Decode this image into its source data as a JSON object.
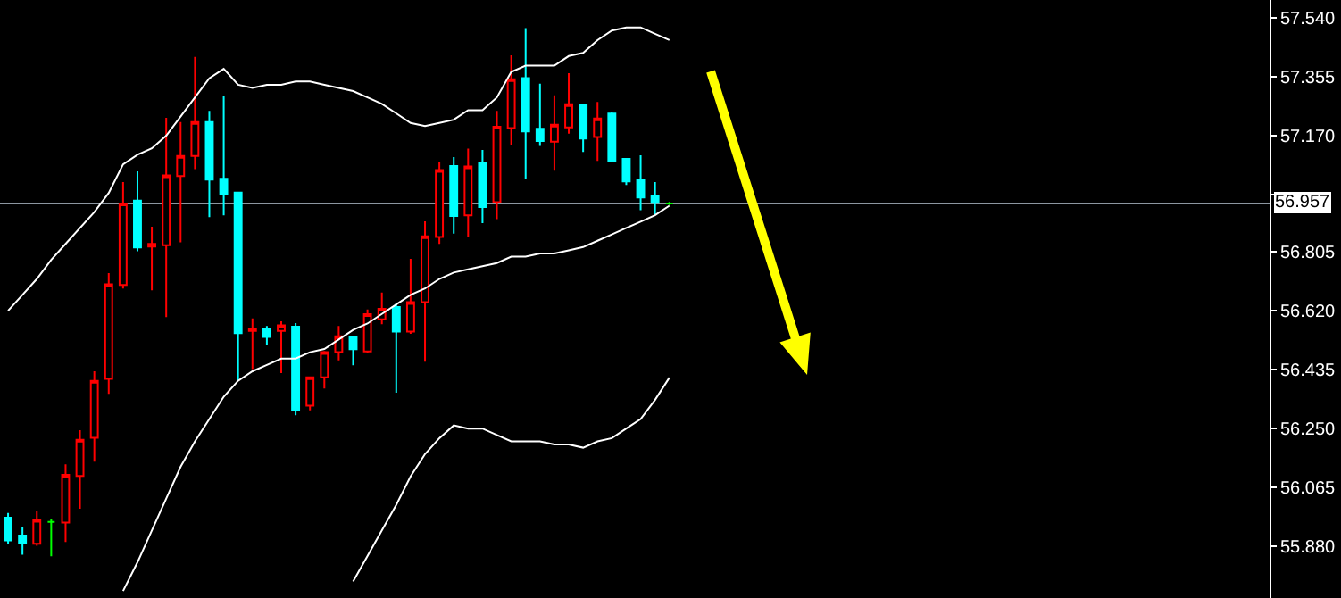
{
  "chart_data": {
    "type": "candlestick",
    "categories": [
      null,
      null,
      null,
      null,
      null,
      null,
      null,
      null,
      null,
      null,
      null,
      null,
      null,
      null,
      null,
      null,
      null,
      null,
      null,
      null,
      null,
      null,
      null,
      null,
      null,
      null,
      null,
      null,
      null,
      null,
      null,
      null,
      null,
      null,
      null,
      null,
      null,
      null,
      null,
      null,
      null,
      null,
      null,
      null,
      null,
      null,
      null
    ],
    "ohlc": [
      [
        55.97,
        55.985,
        55.886,
        55.899
      ],
      [
        55.914,
        55.942,
        55.854,
        55.892
      ],
      [
        55.888,
        55.993,
        55.882,
        55.963
      ],
      [
        55.957,
        55.965,
        55.849,
        55.957
      ],
      [
        55.955,
        56.138,
        55.894,
        56.105
      ],
      [
        56.101,
        56.245,
        55.998,
        56.215
      ],
      [
        56.221,
        56.43,
        56.146,
        56.4
      ],
      [
        56.406,
        56.738,
        56.359,
        56.703
      ],
      [
        56.701,
        57.024,
        56.69,
        56.957
      ],
      [
        56.966,
        57.058,
        56.807,
        56.819
      ],
      [
        56.822,
        56.884,
        56.684,
        56.83
      ],
      [
        56.826,
        57.226,
        56.6,
        57.045
      ],
      [
        57.043,
        57.213,
        56.835,
        57.106
      ],
      [
        57.106,
        57.417,
        57.065,
        57.213
      ],
      [
        57.213,
        57.248,
        56.914,
        57.032
      ],
      [
        57.035,
        57.293,
        56.92,
        56.987
      ],
      [
        56.991,
        56.991,
        56.4,
        56.55
      ],
      [
        56.557,
        56.596,
        56.437,
        56.564
      ],
      [
        56.564,
        56.572,
        56.512,
        56.538
      ],
      [
        56.557,
        56.587,
        56.424,
        56.574
      ],
      [
        56.57,
        56.581,
        56.292,
        56.307
      ],
      [
        56.322,
        56.411,
        56.307,
        56.411
      ],
      [
        56.411,
        56.494,
        56.376,
        56.49
      ],
      [
        56.49,
        56.572,
        56.464,
        56.54
      ],
      [
        56.538,
        56.54,
        56.449,
        56.499
      ],
      [
        56.492,
        56.624,
        56.488,
        56.609
      ],
      [
        56.593,
        56.677,
        56.578,
        56.626
      ],
      [
        56.632,
        56.643,
        56.363,
        56.555
      ],
      [
        56.555,
        56.783,
        56.548,
        56.647
      ],
      [
        56.647,
        56.901,
        56.46,
        56.854
      ],
      [
        56.852,
        57.088,
        56.83,
        57.062
      ],
      [
        57.075,
        57.103,
        56.862,
        56.918
      ],
      [
        56.92,
        57.129,
        56.852,
        57.073
      ],
      [
        57.086,
        57.125,
        56.895,
        56.946
      ],
      [
        56.961,
        57.248,
        56.908,
        57.198
      ],
      [
        57.194,
        57.422,
        57.14,
        57.347
      ],
      [
        57.351,
        57.508,
        57.035,
        57.183
      ],
      [
        57.192,
        57.333,
        57.138,
        57.153
      ],
      [
        57.151,
        57.297,
        57.06,
        57.204
      ],
      [
        57.196,
        57.366,
        57.176,
        57.269
      ],
      [
        57.265,
        57.269,
        57.119,
        57.161
      ],
      [
        57.166,
        57.276,
        57.091,
        57.224
      ],
      [
        57.239,
        57.245,
        57.091,
        57.091
      ],
      [
        57.097,
        57.097,
        57.015,
        57.026
      ],
      [
        57.03,
        57.108,
        56.936,
        56.976
      ],
      [
        56.979,
        57.024,
        56.923,
        56.959
      ],
      [
        56.957,
        56.962,
        56.952,
        56.957
      ]
    ],
    "colors": [
      "#00ffff",
      "#00ffff",
      "#ff0000",
      "#00ff00",
      "#ff0000",
      "#ff0000",
      "#ff0000",
      "#ff0000",
      "#ff0000",
      "#00ffff",
      "#ff0000",
      "#ff0000",
      "#ff0000",
      "#ff0000",
      "#00ffff",
      "#00ffff",
      "#00ffff",
      "#ff0000",
      "#00ffff",
      "#ff0000",
      "#00ffff",
      "#ff0000",
      "#ff0000",
      "#ff0000",
      "#00ffff",
      "#ff0000",
      "#ff0000",
      "#00ffff",
      "#ff0000",
      "#ff0000",
      "#ff0000",
      "#00ffff",
      "#ff0000",
      "#00ffff",
      "#ff0000",
      "#ff0000",
      "#00ffff",
      "#00ffff",
      "#ff0000",
      "#ff0000",
      "#00ffff",
      "#ff0000",
      "#00ffff",
      "#00ffff",
      "#00ffff",
      "#00ffff",
      "#00ff00"
    ],
    "series": [
      {
        "type": "line",
        "color": "#ffffff",
        "values": [
          56.62,
          56.67,
          56.72,
          56.78,
          56.83,
          56.88,
          56.93,
          56.99,
          57.08,
          57.11,
          57.13,
          57.17,
          57.23,
          57.29,
          57.35,
          57.38,
          57.33,
          57.32,
          57.33,
          57.33,
          57.34,
          57.34,
          57.33,
          57.32,
          57.31,
          57.29,
          57.27,
          57.24,
          57.21,
          57.2,
          57.21,
          57.22,
          57.25,
          57.25,
          57.29,
          57.37,
          57.39,
          57.39,
          57.39,
          57.42,
          57.43,
          57.47,
          57.5,
          57.51,
          57.51,
          57.49,
          57.47
        ]
      },
      {
        "type": "line",
        "color": "#ffffff",
        "values": [
          null,
          null,
          null,
          null,
          null,
          null,
          null,
          null,
          55.74,
          55.83,
          55.93,
          56.03,
          56.13,
          56.21,
          56.28,
          56.35,
          56.4,
          56.43,
          56.45,
          56.47,
          56.47,
          56.49,
          56.5,
          56.53,
          56.56,
          56.58,
          56.61,
          56.64,
          56.67,
          56.69,
          56.72,
          56.74,
          56.75,
          56.76,
          56.77,
          56.79,
          56.79,
          56.8,
          56.8,
          56.81,
          56.82,
          56.84,
          56.86,
          56.88,
          56.9,
          56.92,
          56.95
        ]
      },
      {
        "type": "line",
        "color": "#ffffff",
        "values": [
          null,
          null,
          null,
          null,
          null,
          null,
          null,
          null,
          null,
          null,
          null,
          null,
          null,
          null,
          null,
          null,
          null,
          null,
          null,
          null,
          null,
          null,
          null,
          null,
          55.77,
          55.85,
          55.93,
          56.01,
          56.1,
          56.17,
          56.22,
          56.26,
          56.25,
          56.25,
          56.23,
          56.21,
          56.21,
          56.21,
          56.2,
          56.2,
          56.19,
          56.21,
          56.22,
          56.25,
          56.28,
          56.34,
          56.41
        ]
      }
    ],
    "ylim": [
      55.718,
      57.596
    ],
    "yticks": [
      {
        "value": 57.54,
        "label": "57.540"
      },
      {
        "value": 57.355,
        "label": "57.355"
      },
      {
        "value": 57.17,
        "label": "57.170"
      },
      {
        "value": 56.985,
        "label": null
      },
      {
        "value": 56.805,
        "label": "56.805"
      },
      {
        "value": 56.62,
        "label": "56.620"
      },
      {
        "value": 56.435,
        "label": "56.435"
      },
      {
        "value": 56.25,
        "label": "56.250"
      },
      {
        "value": 56.065,
        "label": "56.065"
      },
      {
        "value": 55.88,
        "label": "55.880"
      }
    ],
    "ref_lines": [
      {
        "axis": "y",
        "value": 56.957,
        "label": "56.957",
        "color": "#8c96a0"
      }
    ],
    "tick_labels": "y"
  }
}
